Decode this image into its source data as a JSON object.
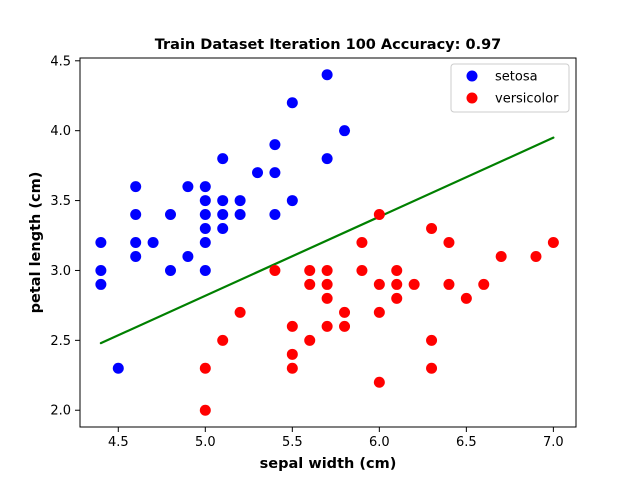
{
  "chart_data": {
    "type": "scatter",
    "title": "Train Dataset Iteration 100    Accuracy: 0.97",
    "xlabel": "sepal width (cm)",
    "ylabel": "petal length (cm)",
    "xlim": [
      4.28,
      7.13
    ],
    "ylim": [
      1.88,
      4.52
    ],
    "xticks": [
      4.5,
      5.0,
      5.5,
      6.0,
      6.5,
      7.0
    ],
    "xtick_labels": [
      "4.5",
      "5.0",
      "5.5",
      "6.0",
      "6.5",
      "7.0"
    ],
    "yticks": [
      2.0,
      2.5,
      3.0,
      3.5,
      4.0,
      4.5
    ],
    "ytick_labels": [
      "2.0",
      "2.5",
      "3.0",
      "3.5",
      "4.0",
      "4.5"
    ],
    "grid": false,
    "legend_position": "top-right",
    "series": [
      {
        "name": "setosa",
        "color": "#0000ff",
        "points": [
          [
            5.7,
            4.4
          ],
          [
            5.5,
            4.2
          ],
          [
            5.8,
            4.0
          ],
          [
            5.4,
            3.9
          ],
          [
            5.1,
            3.8
          ],
          [
            5.7,
            3.8
          ],
          [
            5.3,
            3.7
          ],
          [
            5.4,
            3.7
          ],
          [
            4.6,
            3.6
          ],
          [
            4.9,
            3.6
          ],
          [
            5.0,
            3.6
          ],
          [
            5.0,
            3.5
          ],
          [
            5.1,
            3.5
          ],
          [
            5.2,
            3.5
          ],
          [
            5.5,
            3.5
          ],
          [
            4.6,
            3.4
          ],
          [
            4.8,
            3.4
          ],
          [
            5.0,
            3.4
          ],
          [
            5.1,
            3.4
          ],
          [
            5.2,
            3.4
          ],
          [
            5.4,
            3.4
          ],
          [
            5.0,
            3.3
          ],
          [
            5.1,
            3.3
          ],
          [
            4.4,
            3.2
          ],
          [
            4.6,
            3.2
          ],
          [
            4.7,
            3.2
          ],
          [
            5.0,
            3.2
          ],
          [
            4.6,
            3.1
          ],
          [
            4.9,
            3.1
          ],
          [
            4.4,
            3.0
          ],
          [
            4.8,
            3.0
          ],
          [
            5.0,
            3.0
          ],
          [
            4.4,
            2.9
          ],
          [
            4.5,
            2.3
          ]
        ]
      },
      {
        "name": "versicolor",
        "color": "#ff0000",
        "points": [
          [
            6.0,
            3.4
          ],
          [
            6.3,
            3.3
          ],
          [
            5.9,
            3.2
          ],
          [
            6.4,
            3.2
          ],
          [
            7.0,
            3.2
          ],
          [
            6.7,
            3.1
          ],
          [
            6.9,
            3.1
          ],
          [
            5.4,
            3.0
          ],
          [
            5.6,
            3.0
          ],
          [
            5.7,
            3.0
          ],
          [
            5.9,
            3.0
          ],
          [
            6.1,
            3.0
          ],
          [
            5.6,
            2.9
          ],
          [
            5.7,
            2.9
          ],
          [
            6.0,
            2.9
          ],
          [
            6.1,
            2.9
          ],
          [
            6.2,
            2.9
          ],
          [
            6.4,
            2.9
          ],
          [
            6.6,
            2.9
          ],
          [
            5.7,
            2.8
          ],
          [
            6.1,
            2.8
          ],
          [
            6.5,
            2.8
          ],
          [
            5.2,
            2.7
          ],
          [
            5.8,
            2.7
          ],
          [
            6.0,
            2.7
          ],
          [
            5.5,
            2.6
          ],
          [
            5.7,
            2.6
          ],
          [
            5.8,
            2.6
          ],
          [
            5.1,
            2.5
          ],
          [
            5.6,
            2.5
          ],
          [
            6.3,
            2.5
          ],
          [
            5.5,
            2.4
          ],
          [
            5.0,
            2.3
          ],
          [
            5.5,
            2.3
          ],
          [
            6.3,
            2.3
          ],
          [
            6.0,
            2.2
          ],
          [
            5.0,
            2.0
          ]
        ]
      }
    ],
    "decision_boundary": {
      "color": "#008000",
      "x": [
        4.4,
        7.0
      ],
      "y": [
        2.48,
        3.95
      ]
    }
  }
}
